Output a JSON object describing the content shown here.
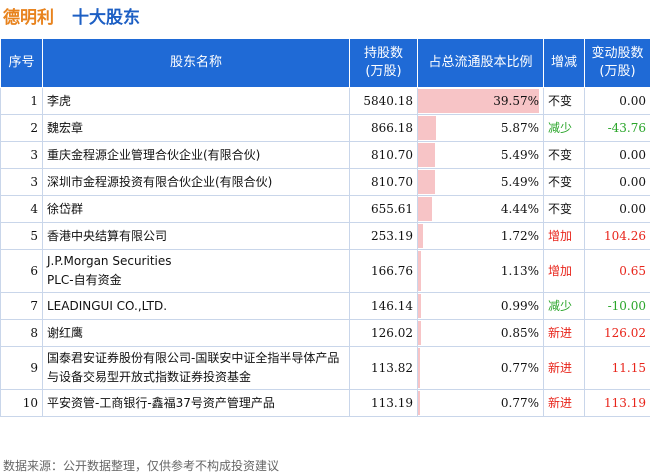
{
  "title": {
    "company": "德明利",
    "subject": "十大股东"
  },
  "headers": {
    "rank": "序号",
    "name": "股东名称",
    "shares": "持股数\n(万股)",
    "ratio": "占总流通股本比例",
    "status": "增减",
    "change": "变动股数\n(万股)"
  },
  "rows": [
    {
      "rank": "1",
      "name": "李虎",
      "shares": "5840.18",
      "ratio": "39.57%",
      "ratio_value": 39.57,
      "status": "不变",
      "status_type": "same",
      "change": "0.00",
      "change_type": "zero"
    },
    {
      "rank": "2",
      "name": "魏宏章",
      "shares": "866.18",
      "ratio": "5.87%",
      "ratio_value": 5.87,
      "status": "减少",
      "status_type": "down",
      "change": "-43.76",
      "change_type": "neg"
    },
    {
      "rank": "3",
      "name": "重庆金程源企业管理合伙企业(有限合伙)",
      "shares": "810.70",
      "ratio": "5.49%",
      "ratio_value": 5.49,
      "status": "不变",
      "status_type": "same",
      "change": "0.00",
      "change_type": "zero"
    },
    {
      "rank": "3",
      "name": "深圳市金程源投资有限合伙企业(有限合伙)",
      "shares": "810.70",
      "ratio": "5.49%",
      "ratio_value": 5.49,
      "status": "不变",
      "status_type": "same",
      "change": "0.00",
      "change_type": "zero"
    },
    {
      "rank": "4",
      "name": "徐岱群",
      "shares": "655.61",
      "ratio": "4.44%",
      "ratio_value": 4.44,
      "status": "不变",
      "status_type": "same",
      "change": "0.00",
      "change_type": "zero"
    },
    {
      "rank": "5",
      "name": "香港中央结算有限公司",
      "shares": "253.19",
      "ratio": "1.72%",
      "ratio_value": 1.72,
      "status": "增加",
      "status_type": "up",
      "change": "104.26",
      "change_type": "pos"
    },
    {
      "rank": "6",
      "name": "J.P.Morgan Securities\nPLC-自有资金",
      "shares": "166.76",
      "ratio": "1.13%",
      "ratio_value": 1.13,
      "status": "增加",
      "status_type": "up",
      "change": "0.65",
      "change_type": "pos",
      "tall": true
    },
    {
      "rank": "7",
      "name": "LEADINGUI CO.,LTD.",
      "shares": "146.14",
      "ratio": "0.99%",
      "ratio_value": 0.99,
      "status": "减少",
      "status_type": "down",
      "change": "-10.00",
      "change_type": "neg"
    },
    {
      "rank": "8",
      "name": "谢红鹰",
      "shares": "126.02",
      "ratio": "0.85%",
      "ratio_value": 0.85,
      "status": "新进",
      "status_type": "up",
      "change": "126.02",
      "change_type": "pos"
    },
    {
      "rank": "9",
      "name": "国泰君安证券股份有限公司-国联安中证全指半导体产品与设备交易型开放式指数证券投资基金",
      "shares": "113.82",
      "ratio": "0.77%",
      "ratio_value": 0.77,
      "status": "新进",
      "status_type": "up",
      "change": "11.15",
      "change_type": "pos",
      "tall": true
    },
    {
      "rank": "10",
      "name": "平安资管-工商银行-鑫福37号资产管理产品",
      "shares": "113.19",
      "ratio": "0.77%",
      "ratio_value": 0.77,
      "status": "新进",
      "status_type": "up",
      "change": "113.19",
      "change_type": "pos"
    }
  ],
  "footer": "数据来源：公开数据整理，仅供参考不构成投资建议"
}
